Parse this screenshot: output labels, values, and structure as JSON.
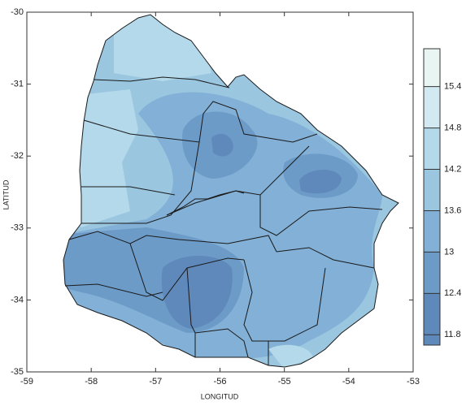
{
  "chart_data": {
    "type": "contour-map",
    "xlabel": "LONGITUD",
    "ylabel": "LATITUD",
    "xlim": [
      -59,
      -53
    ],
    "ylim": [
      -35,
      -30
    ],
    "xticks": [
      -59,
      -58,
      -57,
      -56,
      -55,
      -54,
      -53
    ],
    "yticks": [
      -35,
      -34,
      -33,
      -32,
      -31,
      -30
    ],
    "colorbar": {
      "lim": [
        11.65,
        15.95
      ],
      "ticks": [
        11.8,
        12.4,
        13,
        13.6,
        14.2,
        14.8,
        15.4
      ],
      "colors": [
        "#5f88bb",
        "#5f88bb",
        "#6d9bc8",
        "#82b0d6",
        "#9ac6e0",
        "#b4d9ea",
        "#d2e9f2",
        "#e8f5f2"
      ]
    }
  }
}
